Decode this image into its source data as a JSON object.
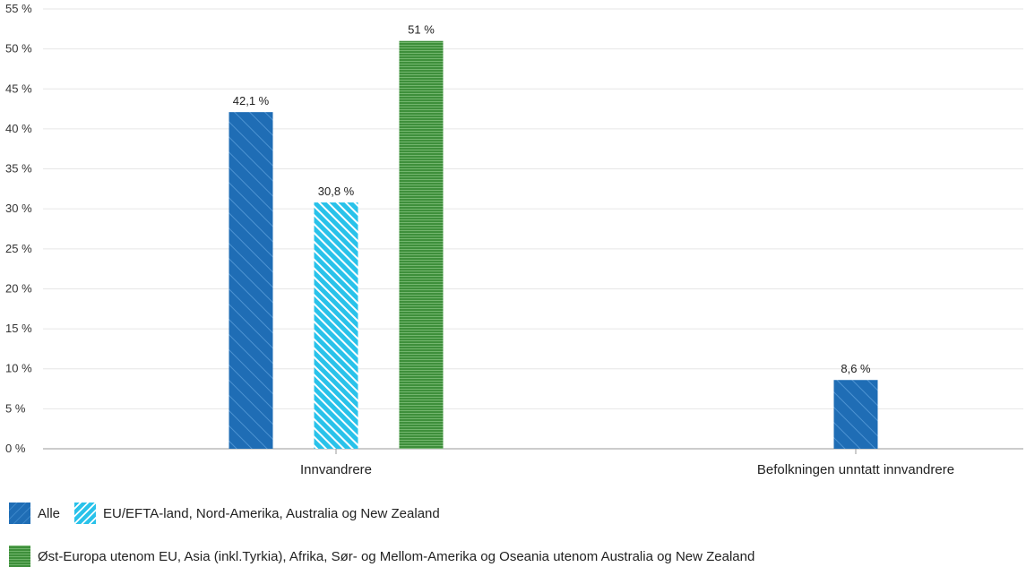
{
  "chart_data": {
    "type": "bar",
    "categories": [
      "Innvandrere",
      "Befolkningen unntatt innvandrere"
    ],
    "series": [
      {
        "name": "Alle",
        "values": [
          42.1,
          8.6
        ],
        "labels": [
          "42,1 %",
          "8,6 %"
        ],
        "color": "#1f6db5"
      },
      {
        "name": "EU/EFTA-land, Nord-Amerika, Australia og New Zealand",
        "values": [
          30.8,
          null
        ],
        "labels": [
          "30,8 %",
          ""
        ],
        "color": "#29c2ea"
      },
      {
        "name": "Øst-Europa utenom EU, Asia (inkl.Tyrkia), Afrika, Sør- og Mellom-Amerika og Oseania utenom Australia og New Zealand",
        "values": [
          51,
          null
        ],
        "labels": [
          "51 %",
          ""
        ],
        "color": "#3e8f3b"
      }
    ],
    "yticks": [
      "0 %",
      "5 %",
      "10 %",
      "15 %",
      "20 %",
      "25 %",
      "30 %",
      "35 %",
      "40 %",
      "45 %",
      "50 %",
      "55 %"
    ],
    "ylim": [
      0,
      55
    ],
    "grid": true,
    "legend_position": "bottom"
  }
}
